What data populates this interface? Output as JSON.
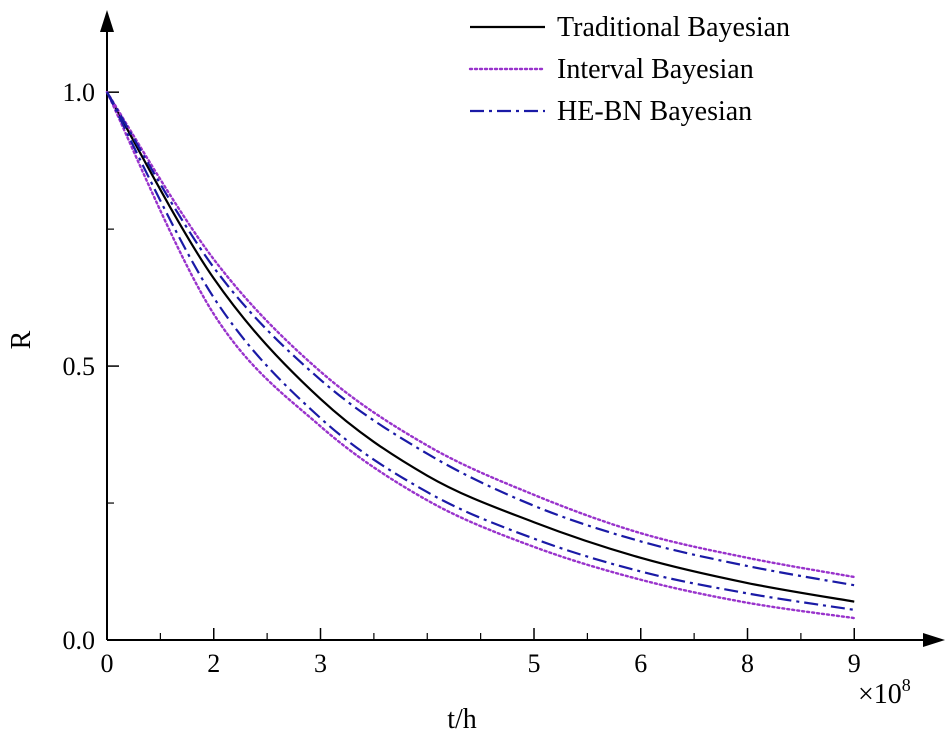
{
  "chart_data": {
    "type": "line",
    "title": "",
    "xlabel": "t/h",
    "ylabel": "R",
    "x_multiplier": "×10",
    "x_multiplier_exp": "8",
    "x_ticks": [
      {
        "value": 0,
        "label": "0"
      },
      {
        "value": 2,
        "label": "2"
      },
      {
        "value": 4,
        "label": "3"
      },
      {
        "value": 8,
        "label": "5"
      },
      {
        "value": 10,
        "label": "6"
      },
      {
        "value": 12,
        "label": "8"
      },
      {
        "value": 14,
        "label": "9"
      }
    ],
    "x_minor_ticks": [
      1,
      3,
      5,
      6,
      7,
      9,
      11,
      13
    ],
    "y_ticks": [
      {
        "value": 0.0,
        "label": "0.0"
      },
      {
        "value": 0.5,
        "label": "0.5"
      },
      {
        "value": 1.0,
        "label": "1.0"
      }
    ],
    "y_minor_ticks": [
      0.25,
      0.75
    ],
    "xlim": [
      0,
      15.7
    ],
    "ylim": [
      0,
      1.15
    ],
    "grid": false,
    "legend_position": "top-right",
    "x": [
      0,
      2,
      4,
      6,
      8,
      10,
      12,
      14
    ],
    "series": [
      {
        "name": "Traditional Bayesian",
        "style": "solid",
        "color": "#000000",
        "values": [
          1.0,
          0.66,
          0.44,
          0.3,
          0.215,
          0.15,
          0.104,
          0.07
        ]
      },
      {
        "name": "Interval Bayesian",
        "style": "dotted",
        "color": "#9933cc",
        "values": [
          1.0,
          0.695,
          0.49,
          0.355,
          0.265,
          0.195,
          0.15,
          0.115
        ]
      },
      {
        "name": "",
        "style": "dotted",
        "color": "#9933cc",
        "values": [
          1.0,
          0.595,
          0.39,
          0.255,
          0.17,
          0.11,
          0.068,
          0.04
        ]
      },
      {
        "name": "HE-BN Bayesian",
        "style": "dashdot",
        "color": "#1a1aa6",
        "values": [
          1.0,
          0.68,
          0.475,
          0.34,
          0.245,
          0.18,
          0.135,
          0.1
        ]
      },
      {
        "name": "",
        "style": "dashdot",
        "color": "#1a1aa6",
        "values": [
          1.0,
          0.625,
          0.405,
          0.27,
          0.185,
          0.125,
          0.085,
          0.055
        ]
      }
    ]
  }
}
